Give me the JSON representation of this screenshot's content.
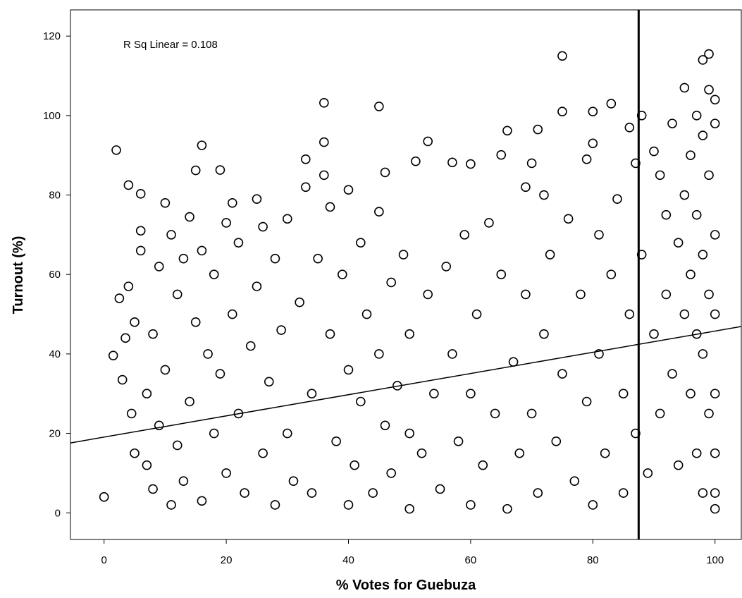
{
  "chart_data": {
    "type": "scatter",
    "xlabel": "% Votes for Guebuza",
    "ylabel": "Turnout (%)",
    "annotation": "R Sq Linear = 0.108",
    "xlim": [
      -5.5,
      104.3
    ],
    "ylim": [
      -6.7,
      126.6
    ],
    "xticks": [
      0,
      20,
      40,
      60,
      80,
      100
    ],
    "yticks": [
      0,
      20,
      40,
      60,
      80,
      100,
      120
    ],
    "color": "#000000",
    "reference_x": 87.5,
    "fit_line": {
      "x": [
        -5.5,
        104.3
      ],
      "y": [
        17.6,
        46.9
      ]
    },
    "x": [
      0,
      2,
      1.5,
      2.5,
      3,
      3.5,
      4,
      4,
      4.5,
      5,
      5,
      6,
      6,
      6,
      7,
      7,
      8,
      8,
      9,
      9,
      10,
      10,
      11,
      11,
      12,
      12,
      13,
      13,
      14,
      14,
      15,
      15,
      16,
      16,
      16,
      17,
      18,
      18,
      19,
      19,
      20,
      20,
      21,
      21,
      22,
      22,
      23,
      24,
      25,
      25,
      26,
      26,
      27,
      28,
      28,
      29,
      30,
      30,
      31,
      32,
      33,
      33,
      34,
      34,
      35,
      36,
      36,
      36,
      37,
      37,
      38,
      39,
      40,
      40,
      40,
      41,
      42,
      42,
      43,
      44,
      45,
      45,
      45,
      46,
      46,
      47,
      47,
      48,
      49,
      50,
      50,
      50,
      51,
      52,
      53,
      53,
      54,
      55,
      56,
      57,
      57,
      58,
      59,
      60,
      60,
      60,
      61,
      62,
      63,
      64,
      65,
      65,
      66,
      66,
      67,
      68,
      69,
      69,
      70,
      70,
      71,
      71,
      72,
      72,
      73,
      74,
      75,
      75,
      75,
      76,
      77,
      78,
      79,
      79,
      80,
      80,
      80,
      81,
      81,
      82,
      83,
      83,
      84,
      85,
      85,
      86,
      86,
      87,
      87,
      88,
      88,
      89,
      90,
      90,
      91,
      91,
      92,
      92,
      93,
      93,
      94,
      94,
      95,
      95,
      95,
      96,
      96,
      96,
      97,
      97,
      97,
      97,
      98,
      98,
      98,
      98,
      98,
      99,
      99,
      99,
      99,
      99,
      100,
      100,
      100,
      100,
      100,
      100,
      100,
      100
    ],
    "y": [
      4,
      91.3,
      39.6,
      54,
      33.5,
      44,
      82.5,
      57,
      25,
      15,
      48,
      80.3,
      71,
      66,
      30,
      12,
      45,
      6,
      62,
      22,
      78,
      36,
      70,
      2,
      55,
      17,
      64,
      8,
      74.5,
      28,
      86.2,
      48,
      92.5,
      66,
      3,
      40,
      60,
      20,
      86.3,
      35,
      73,
      10,
      78,
      50,
      68,
      25,
      5,
      42,
      79,
      57,
      72,
      15,
      33,
      2,
      64,
      46,
      74,
      20,
      8,
      53,
      89,
      82,
      30,
      5,
      64,
      103.2,
      93.3,
      85,
      77,
      45,
      18,
      60,
      81.3,
      36,
      2,
      12,
      68,
      28,
      50,
      5,
      102.3,
      75.8,
      40,
      85.7,
      22,
      58,
      10,
      32,
      65,
      1,
      20,
      45,
      88.5,
      15,
      93.5,
      55,
      30,
      6,
      62,
      88.2,
      40,
      18,
      70,
      2,
      87.8,
      30,
      50,
      12,
      73,
      25,
      90.1,
      60,
      96.2,
      1,
      38,
      15,
      82,
      55,
      88,
      25,
      96.5,
      5,
      80,
      45,
      65,
      18,
      115,
      101,
      35,
      74,
      8,
      55,
      89,
      28,
      101,
      93,
      2,
      70,
      40,
      15,
      103,
      60,
      79,
      30,
      5,
      97,
      50,
      88,
      20,
      100,
      65,
      10,
      91,
      45,
      85,
      25,
      75,
      55,
      98,
      35,
      68,
      12,
      107,
      80,
      50,
      90,
      60,
      30,
      100,
      75,
      45,
      15,
      114,
      95,
      65,
      40,
      5,
      115.5,
      106.5,
      85,
      55,
      25,
      104,
      98,
      70,
      50,
      30,
      15,
      5,
      1
    ]
  }
}
